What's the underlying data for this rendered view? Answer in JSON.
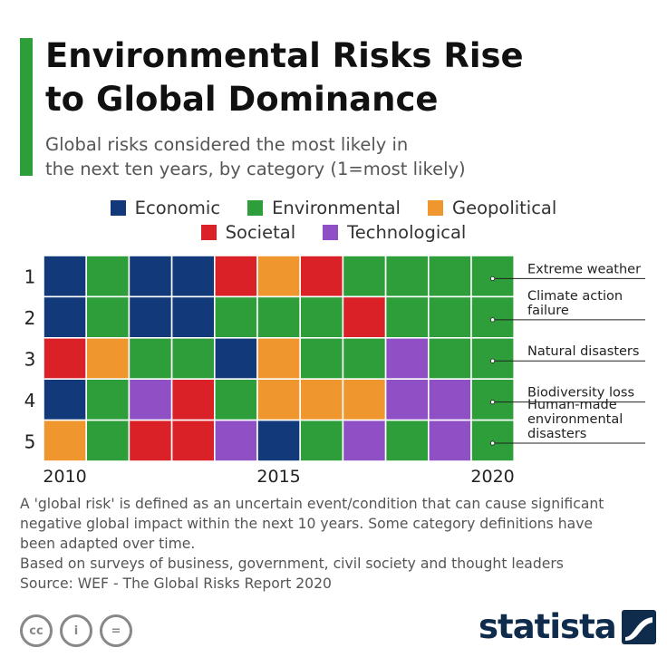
{
  "header": {
    "title_lines": [
      "Environmental Risks Rise",
      "to Global Dominance"
    ],
    "subtitle_lines": [
      "Global risks considered the most likely in",
      "the next ten years, by category (1=most likely)"
    ],
    "accent_color": "#2e9e3a"
  },
  "chart_data": {
    "type": "heatmap",
    "categories": {
      "E": {
        "name": "Economic",
        "color": "#12397a"
      },
      "V": {
        "name": "Environmental",
        "color": "#2e9e3a"
      },
      "G": {
        "name": "Geopolitical",
        "color": "#f0962e"
      },
      "S": {
        "name": "Societal",
        "color": "#db2128"
      },
      "T": {
        "name": "Technological",
        "color": "#8e50c4"
      }
    },
    "legend_rows": [
      [
        "E",
        "V",
        "G"
      ],
      [
        "S",
        "T"
      ]
    ],
    "years": [
      2010,
      2011,
      2012,
      2013,
      2014,
      2015,
      2016,
      2017,
      2018,
      2019,
      2020
    ],
    "rank_labels": [
      "1",
      "2",
      "3",
      "4",
      "5"
    ],
    "x_tick_labels": [
      {
        "year_index": 0,
        "label": "2010"
      },
      {
        "year_index": 5,
        "label": "2015"
      },
      {
        "year_index": 10,
        "label": "2020"
      }
    ],
    "ranks": [
      [
        "E",
        "V",
        "E",
        "E",
        "S",
        "G",
        "S",
        "V",
        "V",
        "V",
        "V"
      ],
      [
        "E",
        "V",
        "E",
        "E",
        "V",
        "V",
        "V",
        "S",
        "V",
        "V",
        "V"
      ],
      [
        "S",
        "G",
        "V",
        "V",
        "E",
        "G",
        "V",
        "V",
        "T",
        "V",
        "V"
      ],
      [
        "E",
        "V",
        "T",
        "S",
        "V",
        "G",
        "G",
        "G",
        "T",
        "T",
        "V"
      ],
      [
        "G",
        "V",
        "S",
        "S",
        "T",
        "E",
        "V",
        "T",
        "V",
        "T",
        "V"
      ]
    ],
    "annotations": [
      {
        "rank": 1,
        "lines": [
          "Extreme weather"
        ]
      },
      {
        "rank": 2,
        "lines": [
          "Climate action",
          "failure"
        ]
      },
      {
        "rank": 3,
        "lines": [
          "Natural disasters"
        ]
      },
      {
        "rank": 4,
        "lines": [
          "Biodiversity loss"
        ]
      },
      {
        "rank": 5,
        "lines": [
          "Human-made",
          "environmental",
          "disasters"
        ]
      }
    ]
  },
  "notes": [
    "A 'global risk' is defined as an uncertain event/condition that can cause significant",
    "negative global impact within the next 10 years. Some category definitions have",
    "been adapted over time.",
    "Based on surveys of business, government, civil society and thought leaders",
    "Source: WEF - The Global Risks Report 2020"
  ],
  "footer": {
    "license_icons": [
      {
        "name": "cc-icon",
        "glyph": "cc"
      },
      {
        "name": "by-icon",
        "glyph": "i"
      },
      {
        "name": "nd-icon",
        "glyph": "="
      }
    ],
    "brand": "statista",
    "brand_color": "#0f2c4c"
  }
}
